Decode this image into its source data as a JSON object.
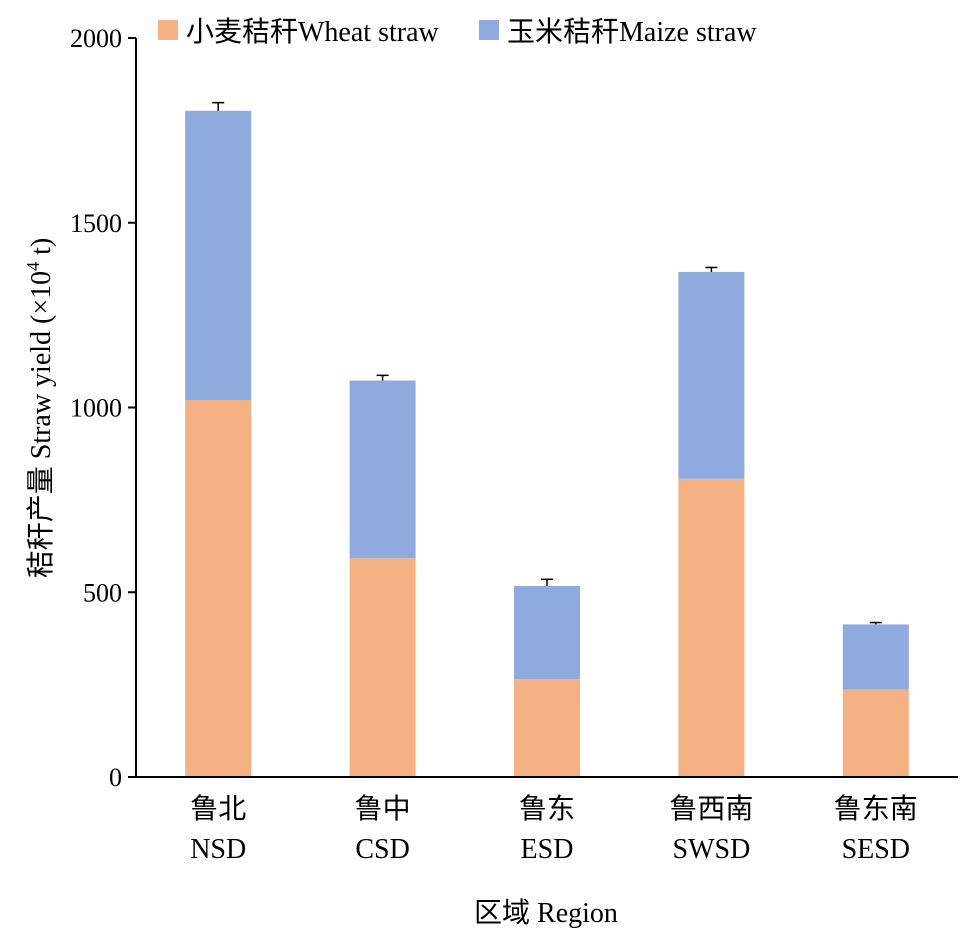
{
  "chart_data": {
    "type": "bar",
    "stacked": true,
    "categories": [
      {
        "zh": "鲁北",
        "en": "NSD"
      },
      {
        "zh": "鲁中",
        "en": "CSD"
      },
      {
        "zh": "鲁东",
        "en": "ESD"
      },
      {
        "zh": "鲁西南",
        "en": "SWSD"
      },
      {
        "zh": "鲁东南",
        "en": "SESD"
      }
    ],
    "series": [
      {
        "name": "小麦秸秆Wheat straw",
        "color": "#F4B183",
        "values": [
          1020,
          592,
          265,
          807,
          237
        ]
      },
      {
        "name": "玉米秸秆Maize straw",
        "color": "#8FAADC",
        "values": [
          783,
          481,
          252,
          560,
          176
        ]
      }
    ],
    "error": [
      22,
      14,
      18,
      12,
      5
    ],
    "ylim": [
      0,
      2000
    ],
    "yticks": [
      0,
      500,
      1000,
      1500,
      2000
    ],
    "xlabel": "区域 Region",
    "ylabel": {
      "main": "秸秆产量 Straw yield (×10",
      "sup": "4",
      "tail": " t)"
    },
    "legend_position": "top",
    "grid": false
  }
}
